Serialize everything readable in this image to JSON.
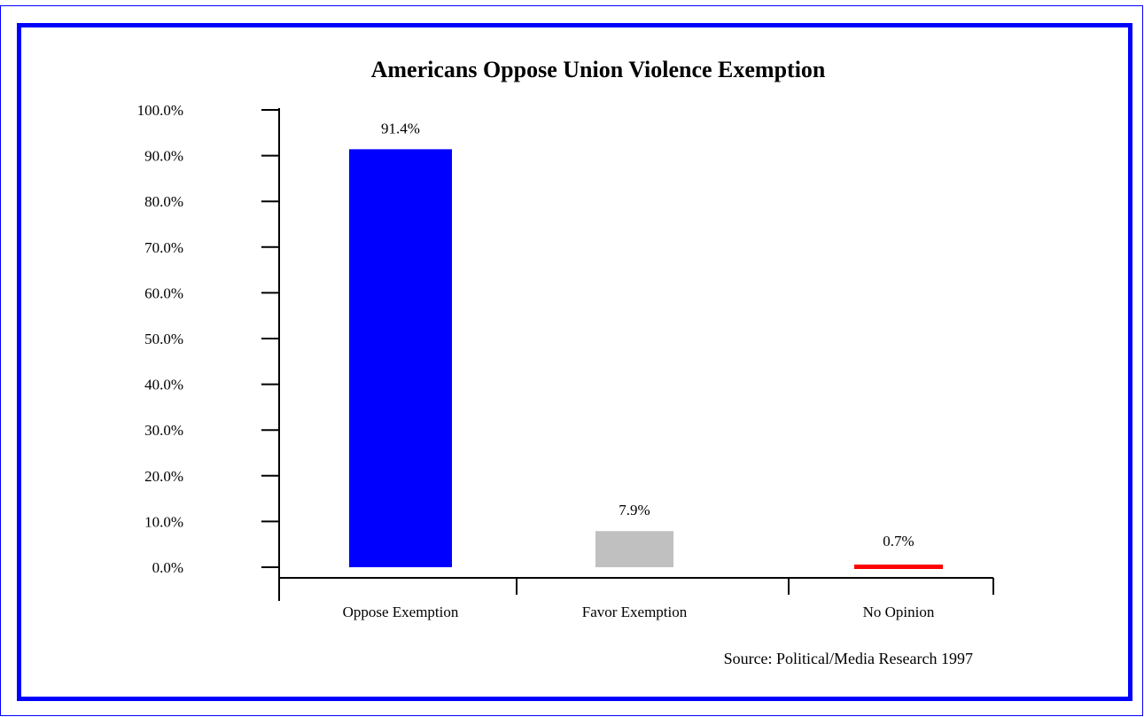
{
  "chart_data": {
    "type": "bar",
    "title": "Americans Oppose Union Violence Exemption",
    "xlabel": "",
    "ylabel": "",
    "categories": [
      "Oppose Exemption",
      "Favor Exemption",
      "No Opinion"
    ],
    "values": [
      91.4,
      7.9,
      0.7
    ],
    "value_labels": [
      "91.4%",
      "7.9%",
      "0.7%"
    ],
    "colors": [
      "#0000ff",
      "#c0c0c0",
      "#ff0000"
    ],
    "y_ticks": [
      "0.0%",
      "10.0%",
      "20.0%",
      "30.0%",
      "40.0%",
      "50.0%",
      "60.0%",
      "70.0%",
      "80.0%",
      "90.0%",
      "100.0%"
    ],
    "ylim": [
      0,
      100
    ],
    "grid": false,
    "legend": "none",
    "source": "Source:  Political/Media Research 1997"
  }
}
